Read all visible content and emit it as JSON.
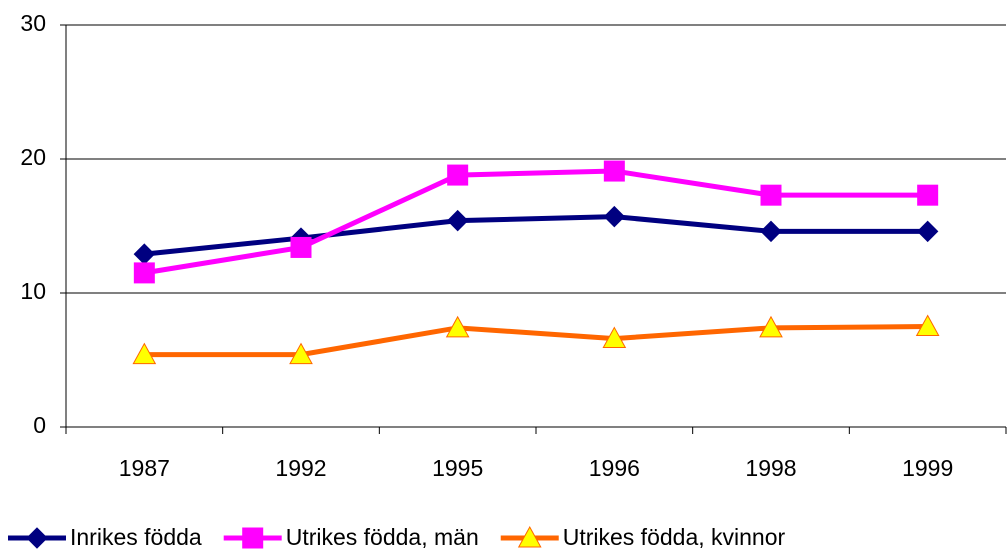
{
  "chart_data": {
    "type": "line",
    "categories": [
      "1987",
      "1992",
      "1995",
      "1996",
      "1998",
      "1999"
    ],
    "series": [
      {
        "name": "Inrikes födda",
        "color": "#000080",
        "marker": "diamond",
        "marker_color": "#000080",
        "values": [
          12.9,
          14.1,
          15.4,
          15.7,
          14.6,
          14.6
        ]
      },
      {
        "name": "Utrikes födda, män",
        "color": "#ff00ff",
        "marker": "square",
        "marker_color": "#ff00ff",
        "values": [
          11.5,
          13.4,
          18.8,
          19.1,
          17.3,
          17.3
        ]
      },
      {
        "name": "Utrikes födda, kvinnor",
        "color": "#ff6600",
        "marker": "triangle",
        "marker_color": "#ffff00",
        "values": [
          5.4,
          5.4,
          7.4,
          6.6,
          7.4,
          7.5
        ]
      }
    ],
    "ylim": [
      0,
      30
    ],
    "yticks": [
      0,
      10,
      20,
      30
    ],
    "grid": true,
    "legend": "bottom"
  }
}
